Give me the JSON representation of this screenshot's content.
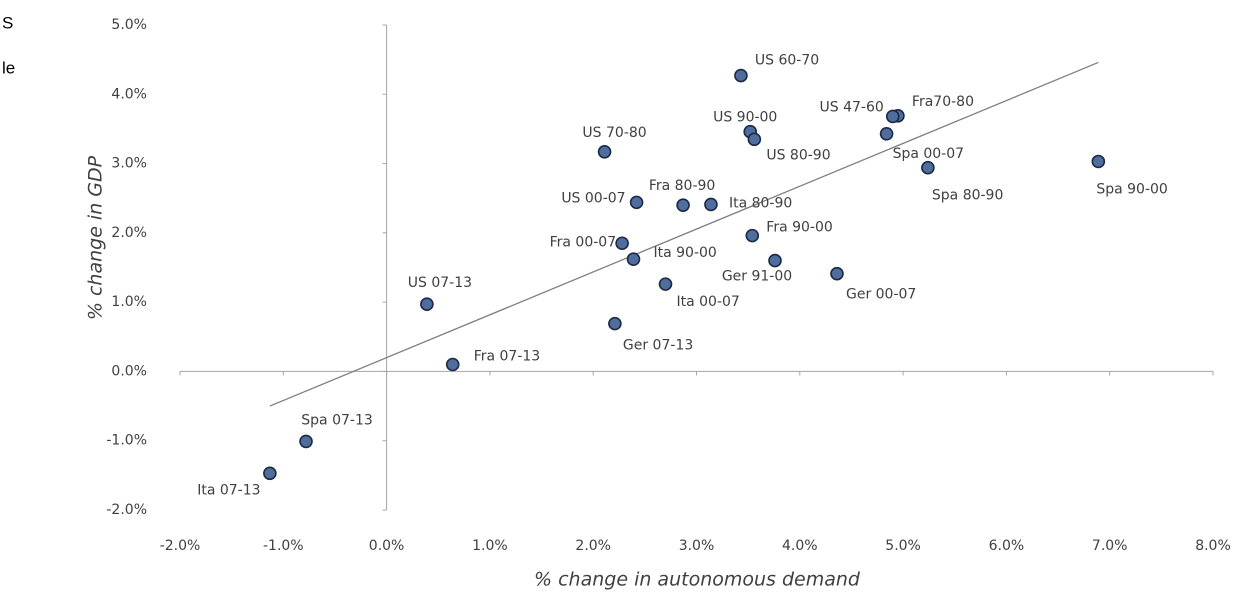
{
  "page_fragments": [
    "S",
    "le"
  ],
  "chart_data": {
    "type": "scatter",
    "x_label": "% change in autonomous demand",
    "y_label": "% change in GDP",
    "labels": [
      "US 60-70",
      "Fra70-80",
      "US 47-60",
      "US 90-00",
      "US 80-90",
      "Spa 00-07",
      "Spa 80-90",
      "Spa 90-00",
      "US 70-80",
      "US 00-07",
      "Fra 80-90",
      "Ita 80-90",
      "Fra 90-00",
      "Fra 00-07",
      "Ita 90-00",
      "Ger 91-00",
      "Ger 00-07",
      "Ita 00-07",
      "US 07-13",
      "Ger 07-13",
      "Fra 07-13",
      "Spa 07-13",
      "Ita 07-13"
    ],
    "x": [
      3.43,
      4.95,
      4.9,
      3.52,
      3.56,
      4.84,
      5.24,
      6.89,
      2.11,
      2.42,
      2.87,
      3.14,
      3.54,
      2.28,
      2.39,
      3.76,
      4.36,
      2.7,
      0.39,
      2.21,
      0.64,
      -0.78,
      -1.13
    ],
    "y": [
      4.27,
      3.69,
      3.68,
      3.46,
      3.35,
      3.43,
      2.94,
      3.03,
      3.17,
      2.44,
      2.4,
      2.41,
      1.96,
      1.85,
      1.62,
      1.6,
      1.41,
      1.26,
      0.97,
      0.69,
      0.1,
      -1.01,
      -1.47
    ],
    "color": "#4f6e9e",
    "trendline": {
      "x": [
        -1.13,
        6.89
      ],
      "y": [
        -0.5,
        4.46
      ]
    },
    "xlim": [
      -2,
      8
    ],
    "ylim": [
      -2,
      5
    ],
    "xticks": [
      {
        "value": -2,
        "label": "-2.0%"
      },
      {
        "value": -1,
        "label": "-1.0%"
      },
      {
        "value": 0,
        "label": "0.0%"
      },
      {
        "value": 1,
        "label": "1.0%"
      },
      {
        "value": 2,
        "label": "2.0%"
      },
      {
        "value": 3,
        "label": "3.0%"
      },
      {
        "value": 4,
        "label": "4.0%"
      },
      {
        "value": 5,
        "label": "5.0%"
      },
      {
        "value": 6,
        "label": "6.0%"
      },
      {
        "value": 7,
        "label": "7.0%"
      },
      {
        "value": 8,
        "label": "8.0%"
      }
    ],
    "yticks": [
      {
        "value": -2,
        "label": "-2.0%"
      },
      {
        "value": -1,
        "label": "-1.0%"
      },
      {
        "value": 0,
        "label": "0.0%"
      },
      {
        "value": 1,
        "label": "1.0%"
      },
      {
        "value": 2,
        "label": "2.0%"
      },
      {
        "value": 3,
        "label": "3.0%"
      },
      {
        "value": 4,
        "label": "4.0%"
      },
      {
        "value": 5,
        "label": "5.0%"
      }
    ],
    "grid": false
  }
}
